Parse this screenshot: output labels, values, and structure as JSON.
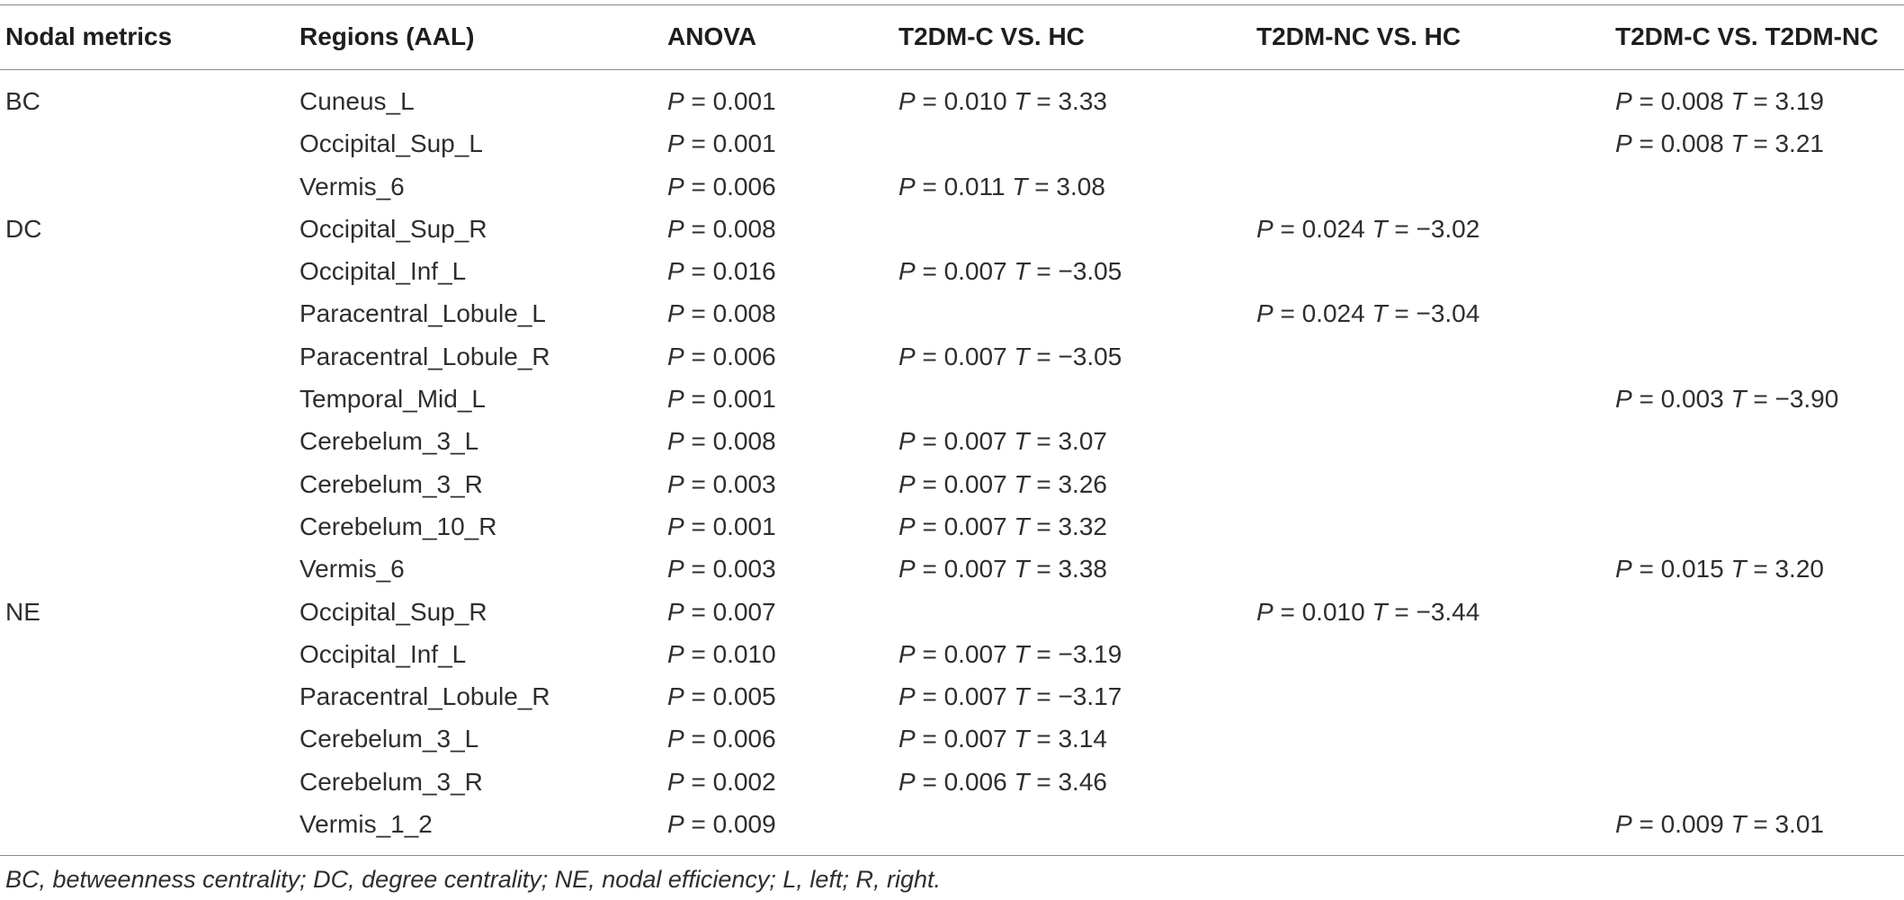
{
  "table": {
    "headers": [
      "Nodal metrics",
      "Regions (AAL)",
      "ANOVA",
      "T2DM-C VS. HC",
      "T2DM-NC VS. HC",
      "T2DM-C VS. T2DM-NC"
    ],
    "rows": [
      [
        "BC",
        "Cuneus_L",
        "P = 0.001",
        "P = 0.010 T = 3.33",
        "",
        "P = 0.008 T = 3.19"
      ],
      [
        "",
        "Occipital_Sup_L",
        "P = 0.001",
        "",
        "",
        "P = 0.008 T = 3.21"
      ],
      [
        "",
        "Vermis_6",
        "P = 0.006",
        "P = 0.011 T = 3.08",
        "",
        ""
      ],
      [
        "DC",
        "Occipital_Sup_R",
        "P = 0.008",
        "",
        "P = 0.024 T = −3.02",
        ""
      ],
      [
        "",
        "Occipital_Inf_L",
        "P = 0.016",
        "P = 0.007 T = −3.05",
        "",
        ""
      ],
      [
        "",
        "Paracentral_Lobule_L",
        "P = 0.008",
        "",
        "P = 0.024 T = −3.04",
        ""
      ],
      [
        "",
        "Paracentral_Lobule_R",
        "P = 0.006",
        "P = 0.007 T = −3.05",
        "",
        ""
      ],
      [
        "",
        "Temporal_Mid_L",
        "P = 0.001",
        "",
        "",
        "P = 0.003 T = −3.90"
      ],
      [
        "",
        "Cerebelum_3_L",
        "P = 0.008",
        "P = 0.007 T = 3.07",
        "",
        ""
      ],
      [
        "",
        "Cerebelum_3_R",
        "P = 0.003",
        "P = 0.007 T = 3.26",
        "",
        ""
      ],
      [
        "",
        "Cerebelum_10_R",
        "P = 0.001",
        "P = 0.007 T = 3.32",
        "",
        ""
      ],
      [
        "",
        "Vermis_6",
        "P = 0.003",
        "P = 0.007 T = 3.38",
        "",
        "P = 0.015 T = 3.20"
      ],
      [
        "NE",
        "Occipital_Sup_R",
        "P = 0.007",
        "",
        "P = 0.010 T = −3.44",
        ""
      ],
      [
        "",
        "Occipital_Inf_L",
        "P = 0.010",
        "P = 0.007 T = −3.19",
        "",
        ""
      ],
      [
        "",
        "Paracentral_Lobule_R",
        "P = 0.005",
        "P = 0.007 T = −3.17",
        "",
        ""
      ],
      [
        "",
        "Cerebelum_3_L",
        "P = 0.006",
        "P = 0.007 T = 3.14",
        "",
        ""
      ],
      [
        "",
        "Cerebelum_3_R",
        "P = 0.002",
        "P = 0.006 T = 3.46",
        "",
        ""
      ],
      [
        "",
        "Vermis_1_2",
        "P = 0.009",
        "",
        "",
        "P = 0.009 T = 3.01"
      ]
    ],
    "footnote": "BC, betweenness centrality; DC, degree centrality; NE, nodal efficiency; L, left; R, right."
  }
}
